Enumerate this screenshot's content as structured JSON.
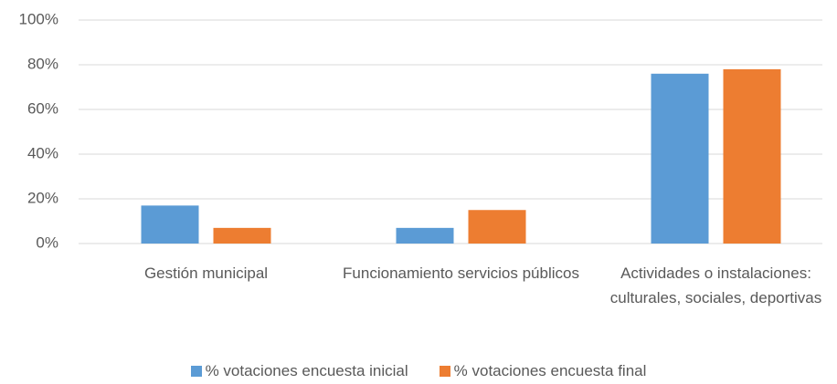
{
  "chart_data": {
    "type": "bar",
    "categories": [
      "Gestión municipal",
      "Funcionamiento servicios públicos",
      "Actividades o instalaciones: culturales, sociales, deportivas"
    ],
    "series": [
      {
        "name": "% votaciones encuesta inicial",
        "color": "#5b9bd5",
        "values": [
          17,
          7,
          76
        ]
      },
      {
        "name": "% votaciones encuesta final",
        "color": "#ed7d31",
        "values": [
          7,
          15,
          78
        ]
      }
    ],
    "ylim": [
      0,
      100
    ],
    "yticks": [
      {
        "value": 0,
        "label": "0%"
      },
      {
        "value": 20,
        "label": "20%"
      },
      {
        "value": 40,
        "label": "40%"
      },
      {
        "value": 60,
        "label": "60%"
      },
      {
        "value": 80,
        "label": "80%"
      },
      {
        "value": 100,
        "label": "100%"
      }
    ],
    "grid": true,
    "legend": "bottom"
  }
}
